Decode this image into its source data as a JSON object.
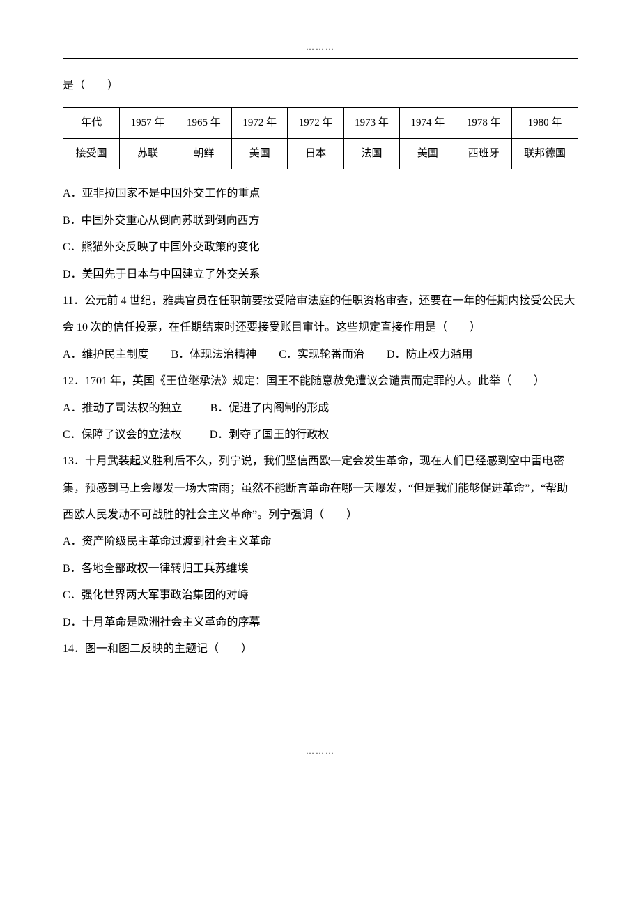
{
  "decoration": {
    "dots": "………"
  },
  "q10": {
    "stem_tail": "是（　　）",
    "table": {
      "row1_label": "年代",
      "row2_label": "接受国",
      "years": [
        "1957 年",
        "1965 年",
        "1972 年",
        "1972 年",
        "1973 年",
        "1974 年",
        "1978 年",
        "1980 年"
      ],
      "countries": [
        "苏联",
        "朝鲜",
        "美国",
        "日本",
        "法国",
        "美国",
        "西班牙",
        "联邦德国"
      ]
    },
    "options": {
      "A": "A．亚非拉国家不是中国外交工作的重点",
      "B": "B．中国外交重心从倒向苏联到倒向西方",
      "C": "C．熊猫外交反映了中国外交政策的变化",
      "D": "D．美国先于日本与中国建立了外交关系"
    }
  },
  "q11": {
    "stem": "11．公元前 4 世纪，雅典官员在任职前要接受陪审法庭的任职资格审查，还要在一年的任期内接受公民大会 10 次的信任投票，在任期结束时还要接受账目审计。这些规定直接作用是（　　）",
    "options": {
      "A": "A．维护民主制度",
      "B": "B．体现法治精神",
      "C": "C．实现轮番而治",
      "D": "D．防止权力滥用"
    }
  },
  "q12": {
    "stem": "12．1701 年，英国《王位继承法》规定：国王不能随意赦免遭议会谴责而定罪的人。此举（　　）",
    "options": {
      "A": "A．推动了司法权的独立",
      "B": "B．促进了内阁制的形成",
      "C": "C．保障了议会的立法权",
      "D": "D．剥夺了国王的行政权"
    }
  },
  "q13": {
    "stem": "13．十月武装起义胜利后不久，列宁说，我们坚信西欧一定会发生革命，现在人们已经感到空中雷电密集，预感到马上会爆发一场大雷雨；虽然不能断言革命在哪一天爆发，“但是我们能够促进革命”，“帮助西欧人民发动不可战胜的社会主义革命”。列宁强调（　　）",
    "options": {
      "A": "A．资产阶级民主革命过渡到社会主义革命",
      "B": "B．各地全部政权一律转归工兵苏维埃",
      "C": "C．强化世界两大军事政治集团的对峙",
      "D": "D．十月革命是欧洲社会主义革命的序幕"
    }
  },
  "q14": {
    "stem": "14．图一和图二反映的主题记（　　）"
  }
}
